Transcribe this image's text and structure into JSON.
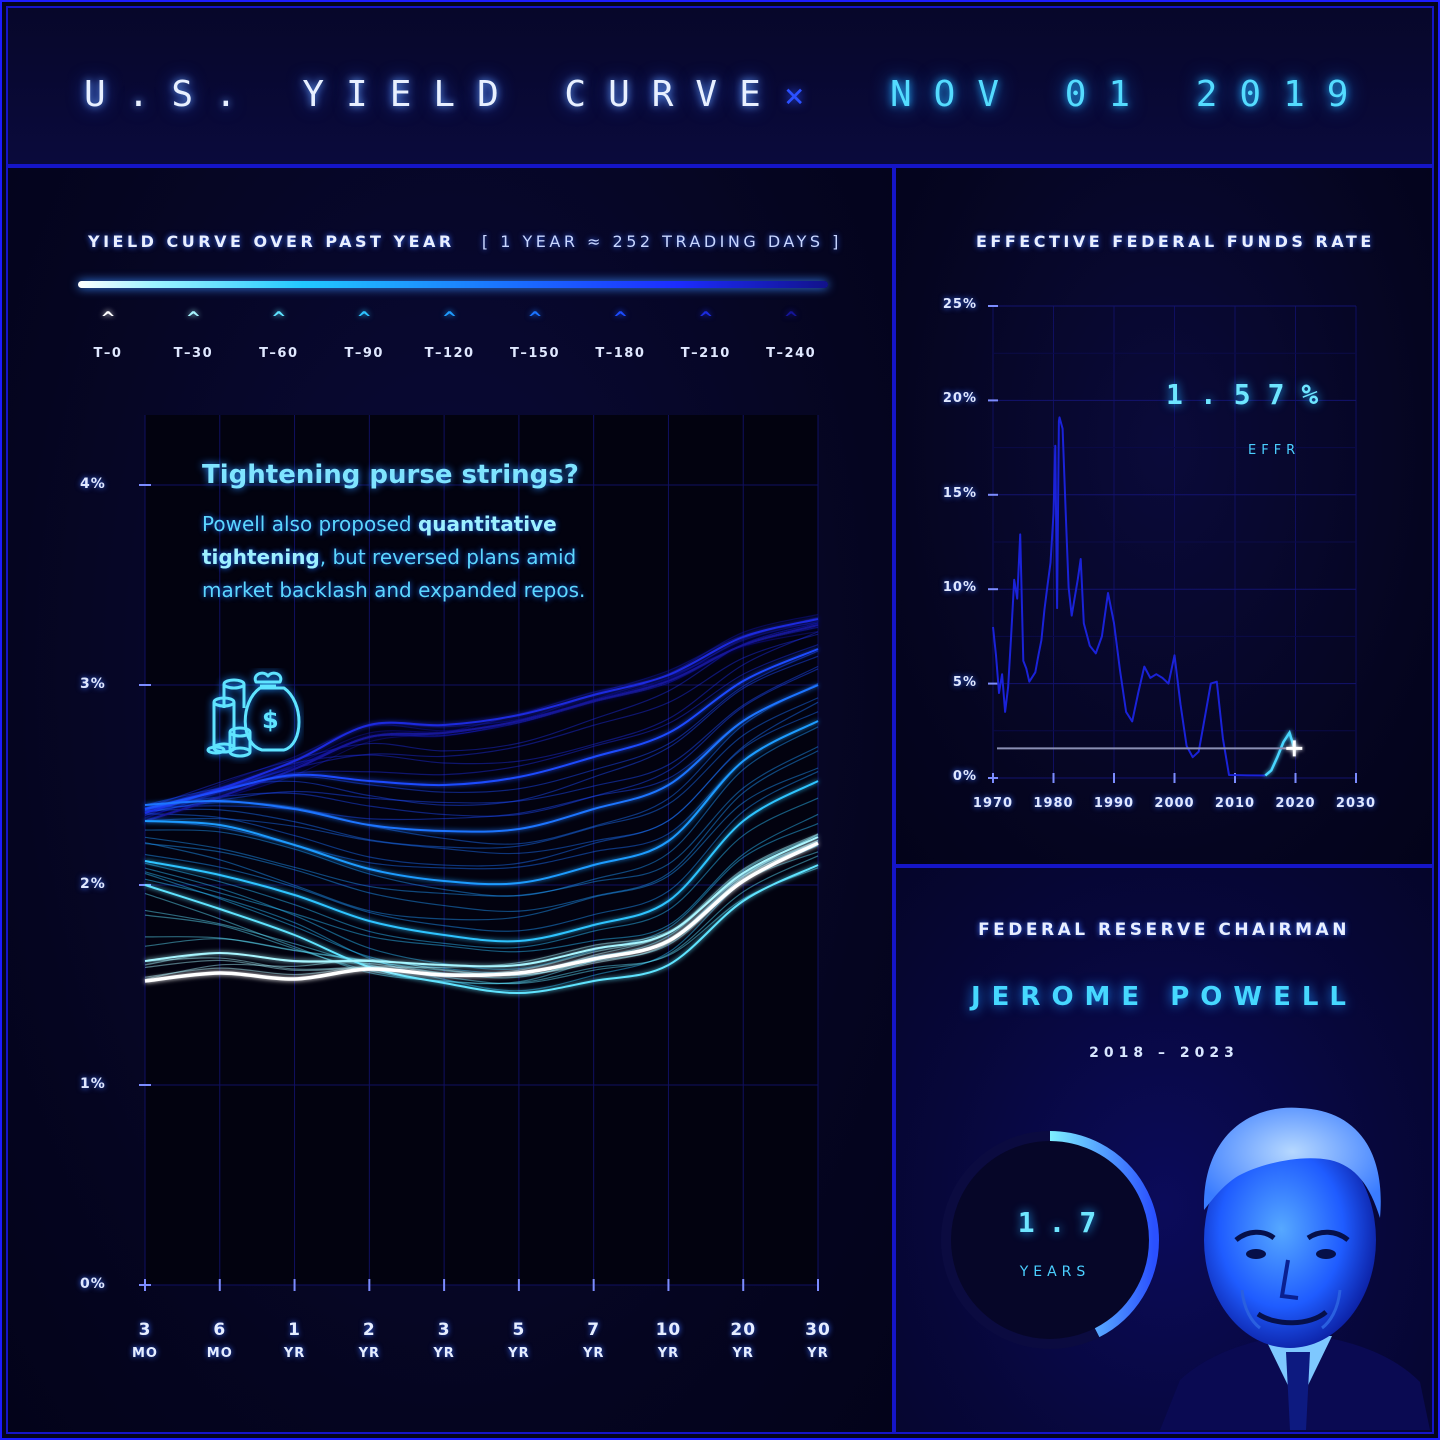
{
  "header": {
    "title": "U.S. YIELD CURVE",
    "separator": "×",
    "date": "NOV 01 2019"
  },
  "yield_panel": {
    "title": "YIELD CURVE OVER PAST YEAR",
    "subtitle": "[ 1 YEAR ≈ 252 TRADING DAYS ]",
    "legend": [
      {
        "label": "T–0",
        "color": "#ffffff"
      },
      {
        "label": "T–30",
        "color": "#a8f6ff"
      },
      {
        "label": "T–60",
        "color": "#5fe4ff"
      },
      {
        "label": "T–90",
        "color": "#2ec4ff"
      },
      {
        "label": "T–120",
        "color": "#1f9cff"
      },
      {
        "label": "T–150",
        "color": "#1b74ff"
      },
      {
        "label": "T–180",
        "color": "#1c4cff"
      },
      {
        "label": "T–210",
        "color": "#1c2ce0"
      },
      {
        "label": "T–240",
        "color": "#141498"
      }
    ],
    "annotation": {
      "title": "Tightening purse strings?",
      "body_pre": "Powell also proposed ",
      "body_bold": "quantitative tightening",
      "body_post": ", but reversed plans amid market backlash and expanded repos."
    }
  },
  "effr_panel": {
    "title": "EFFECTIVE FEDERAL FUNDS RATE",
    "current_value": "1.57%",
    "current_label": "EFFR"
  },
  "fed_panel": {
    "heading": "FEDERAL RESERVE CHAIRMAN",
    "name": "JEROME POWELL",
    "term": "2018 – 2023",
    "tenure_value": "1.7",
    "tenure_label": "YEARS",
    "tenure_fraction": 0.425,
    "portrait_icon": "chairman-portrait-icon"
  },
  "colors": {
    "background": "#05051a",
    "border": "#1c1cff",
    "accent_cyan": "#54dcff",
    "axis": "#3c50ff"
  },
  "chart_data": [
    {
      "type": "line",
      "title": "YIELD CURVE OVER PAST YEAR",
      "x_categories": [
        {
          "n": "3",
          "u": "MO"
        },
        {
          "n": "6",
          "u": "MO"
        },
        {
          "n": "1",
          "u": "YR"
        },
        {
          "n": "2",
          "u": "YR"
        },
        {
          "n": "3",
          "u": "YR"
        },
        {
          "n": "5",
          "u": "YR"
        },
        {
          "n": "7",
          "u": "YR"
        },
        {
          "n": "10",
          "u": "YR"
        },
        {
          "n": "20",
          "u": "YR"
        },
        {
          "n": "30",
          "u": "YR"
        }
      ],
      "y_ticks": [
        "0%",
        "1%",
        "2%",
        "3%",
        "4%"
      ],
      "ylim": [
        0,
        4.5
      ],
      "grid": true,
      "series": [
        {
          "values": [
            1.52,
            1.56,
            1.53,
            1.58,
            1.55,
            1.56,
            1.63,
            1.72,
            2.02,
            2.21
          ],
          "color": "#ffffff"
        },
        {
          "values": [
            1.62,
            1.66,
            1.62,
            1.62,
            1.6,
            1.6,
            1.68,
            1.76,
            2.06,
            2.24
          ],
          "color": "#a8f6ff"
        },
        {
          "values": [
            2.0,
            1.88,
            1.75,
            1.59,
            1.51,
            1.46,
            1.52,
            1.6,
            1.92,
            2.1
          ],
          "color": "#5fe4ff"
        },
        {
          "values": [
            2.12,
            2.05,
            1.95,
            1.82,
            1.75,
            1.72,
            1.8,
            1.92,
            2.32,
            2.52
          ],
          "color": "#2ec4ff"
        },
        {
          "values": [
            2.32,
            2.3,
            2.2,
            2.08,
            2.02,
            2.01,
            2.1,
            2.22,
            2.62,
            2.82
          ],
          "color": "#1f9cff"
        },
        {
          "values": [
            2.4,
            2.42,
            2.38,
            2.3,
            2.27,
            2.28,
            2.38,
            2.5,
            2.82,
            3.0
          ],
          "color": "#1b74ff"
        },
        {
          "values": [
            2.38,
            2.47,
            2.55,
            2.52,
            2.5,
            2.54,
            2.64,
            2.76,
            3.02,
            3.18
          ],
          "color": "#1c4cff"
        },
        {
          "values": [
            2.36,
            2.48,
            2.62,
            2.8,
            2.8,
            2.85,
            2.95,
            3.05,
            3.24,
            3.33
          ],
          "color": "#1c2ce0"
        },
        {
          "values": [
            2.32,
            2.44,
            2.58,
            2.74,
            2.76,
            2.82,
            2.92,
            3.02,
            3.2,
            3.3
          ],
          "color": "#141498"
        }
      ]
    },
    {
      "type": "line",
      "title": "EFFECTIVE FEDERAL FUNDS RATE",
      "x_ticks": [
        "1970",
        "1980",
        "1990",
        "2000",
        "2010",
        "2020",
        "2030"
      ],
      "y_ticks": [
        "0%",
        "5%",
        "10%",
        "15%",
        "20%",
        "25%"
      ],
      "xlim": [
        1970,
        2030
      ],
      "ylim": [
        0,
        25
      ],
      "reference_level": 1.57,
      "points": [
        [
          1970,
          8.0
        ],
        [
          1970.5,
          6.5
        ],
        [
          1971,
          4.5
        ],
        [
          1971.5,
          5.5
        ],
        [
          1972,
          3.5
        ],
        [
          1972.5,
          4.8
        ],
        [
          1973,
          7.5
        ],
        [
          1973.5,
          10.5
        ],
        [
          1974,
          9.5
        ],
        [
          1974.5,
          12.9
        ],
        [
          1975,
          6.2
        ],
        [
          1975.5,
          5.8
        ],
        [
          1976,
          5.1
        ],
        [
          1977,
          5.6
        ],
        [
          1977.5,
          6.5
        ],
        [
          1978,
          7.3
        ],
        [
          1978.5,
          8.9
        ],
        [
          1979,
          10.2
        ],
        [
          1979.5,
          11.4
        ],
        [
          1980,
          14.0
        ],
        [
          1980.3,
          17.6
        ],
        [
          1980.6,
          9.0
        ],
        [
          1980.9,
          18.9
        ],
        [
          1981,
          19.1
        ],
        [
          1981.5,
          18.5
        ],
        [
          1982,
          14.2
        ],
        [
          1982.5,
          10.1
        ],
        [
          1983,
          8.6
        ],
        [
          1984,
          10.5
        ],
        [
          1984.5,
          11.6
        ],
        [
          1985,
          8.2
        ],
        [
          1986,
          7.0
        ],
        [
          1987,
          6.6
        ],
        [
          1988,
          7.5
        ],
        [
          1989,
          9.8
        ],
        [
          1990,
          8.2
        ],
        [
          1991,
          5.7
        ],
        [
          1992,
          3.5
        ],
        [
          1993,
          3.0
        ],
        [
          1994,
          4.5
        ],
        [
          1995,
          5.9
        ],
        [
          1996,
          5.3
        ],
        [
          1997,
          5.5
        ],
        [
          1998,
          5.3
        ],
        [
          1999,
          5.0
        ],
        [
          2000,
          6.5
        ],
        [
          2001,
          3.9
        ],
        [
          2002,
          1.7
        ],
        [
          2003,
          1.1
        ],
        [
          2004,
          1.4
        ],
        [
          2005,
          3.2
        ],
        [
          2006,
          5.0
        ],
        [
          2007,
          5.1
        ],
        [
          2008,
          2.1
        ],
        [
          2009,
          0.16
        ],
        [
          2012,
          0.14
        ],
        [
          2015,
          0.13
        ],
        [
          2016,
          0.4
        ],
        [
          2017,
          1.1
        ],
        [
          2018,
          1.9
        ],
        [
          2019,
          2.4
        ],
        [
          2019.8,
          1.57
        ]
      ]
    }
  ]
}
